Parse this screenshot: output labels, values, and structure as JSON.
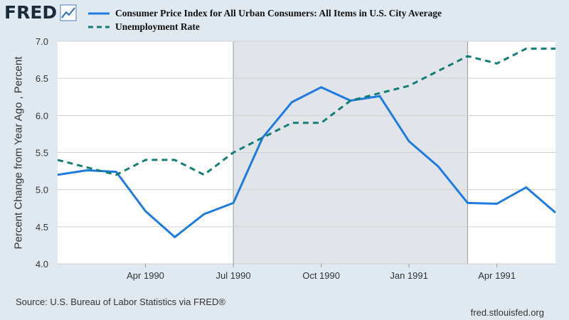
{
  "logo": {
    "text": "FRED",
    "icon": "trend-graph-icon"
  },
  "source": "Source: U.S. Bureau of Labor Statistics via FRED®",
  "site": "fred.stlouisfed.org",
  "colors": {
    "background": "#e1e9f0",
    "plot_bg": "#ffffff",
    "recession": "#e1e5ea",
    "cpi": "#1f7ae0",
    "unemployment": "#147d75",
    "grid": "#d0d0d0"
  },
  "chart_data": {
    "type": "line",
    "title": "",
    "xlabel": "",
    "ylabel": "Percent Change from Year Ago , Percent",
    "ylim": [
      4.0,
      7.0
    ],
    "yticks": [
      "4.0",
      "4.5",
      "5.0",
      "5.5",
      "6.0",
      "6.5",
      "7.0"
    ],
    "x": [
      "1990-01",
      "1990-02",
      "1990-03",
      "1990-04",
      "1990-05",
      "1990-06",
      "1990-07",
      "1990-08",
      "1990-09",
      "1990-10",
      "1990-11",
      "1990-12",
      "1991-01",
      "1991-02",
      "1991-03",
      "1991-04",
      "1991-05",
      "1991-06"
    ],
    "xticks": [
      {
        "index": 3,
        "label": "Apr 1990"
      },
      {
        "index": 6,
        "label": "Jul 1990"
      },
      {
        "index": 9,
        "label": "Oct 1990"
      },
      {
        "index": 12,
        "label": "Jan 1991"
      },
      {
        "index": 15,
        "label": "Apr 1991"
      }
    ],
    "recession": {
      "start_index": 6,
      "end_index": 14
    },
    "series": [
      {
        "name": "Consumer Price Index for All Urban Consumers: All Items in U.S. City Average",
        "style": "solid",
        "values": [
          5.2,
          5.26,
          5.24,
          4.71,
          4.36,
          4.67,
          4.82,
          5.7,
          6.18,
          6.38,
          6.2,
          6.26,
          5.65,
          5.31,
          4.82,
          4.81,
          5.03,
          4.69
        ]
      },
      {
        "name": "Unemployment Rate",
        "style": "dashed",
        "values": [
          5.4,
          5.3,
          5.2,
          5.4,
          5.4,
          5.2,
          5.5,
          5.7,
          5.9,
          5.9,
          6.2,
          6.3,
          6.4,
          6.6,
          6.8,
          6.7,
          6.9,
          6.9
        ]
      }
    ]
  }
}
